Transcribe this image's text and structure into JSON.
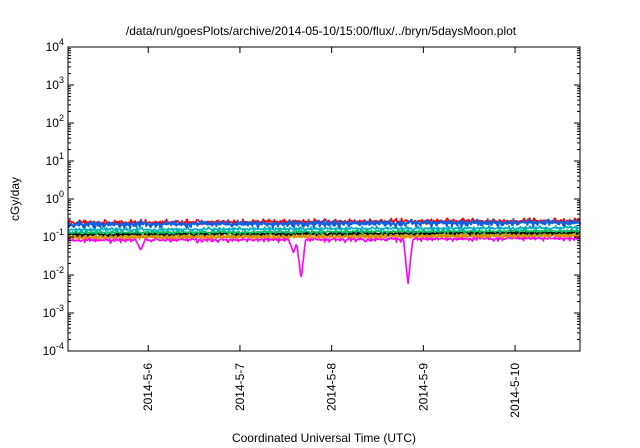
{
  "chart_data": {
    "type": "line",
    "title": "/data/run/goesPlots/archive/2014-05-10/15:00/flux/../bryn/5daysMoon.plot",
    "xlabel": "Coordinated Universal Time (UTC)",
    "ylabel": "cGy/day",
    "yscale": "log",
    "ylim": [
      0.0001,
      10000
    ],
    "y_ticks": [
      {
        "exp": "-4",
        "value": 0.0001
      },
      {
        "exp": "-3",
        "value": 0.001
      },
      {
        "exp": "-2",
        "value": 0.01
      },
      {
        "exp": "-1",
        "value": 0.1
      },
      {
        "exp": "0",
        "value": 1
      },
      {
        "exp": "1",
        "value": 10
      },
      {
        "exp": "2",
        "value": 100
      },
      {
        "exp": "3",
        "value": 1000
      },
      {
        "exp": "4",
        "value": 10000
      }
    ],
    "y_tick_base": "10",
    "xlim": [
      "2014-05-05T03:00",
      "2014-05-10T17:00"
    ],
    "x_ticks": [
      {
        "label": "2014-5-6",
        "time": "2014-05-06T00:00"
      },
      {
        "label": "2014-5-7",
        "time": "2014-05-07T00:00"
      },
      {
        "label": "2014-5-8",
        "time": "2014-05-08T00:00"
      },
      {
        "label": "2014-5-9",
        "time": "2014-05-09T00:00"
      },
      {
        "label": "2014-5-10",
        "time": "2014-05-10T00:00"
      }
    ],
    "grid": false,
    "legend": "none",
    "series": [
      {
        "color": "#ff00ff",
        "base": 0.082,
        "noise": 0.18,
        "dips": [
          {
            "time": "2014-05-05T22:00",
            "min": 0.045
          },
          {
            "time": "2014-05-07T14:00",
            "min": 0.038
          },
          {
            "time": "2014-05-07T16:00",
            "min": 0.008
          },
          {
            "time": "2014-05-08T20:00",
            "min": 0.0058
          }
        ]
      },
      {
        "color": "#ff7f00",
        "base": 0.095,
        "noise": 0.12,
        "dips": []
      },
      {
        "color": "#b8a000",
        "base": 0.105,
        "noise": 0.12,
        "dips": []
      },
      {
        "color": "#000000",
        "base": 0.117,
        "noise": 0.12,
        "dips": []
      },
      {
        "color": "#00c060",
        "base": 0.13,
        "noise": 0.14,
        "dips": []
      },
      {
        "color": "#00b0c0",
        "base": 0.155,
        "noise": 0.16,
        "dips": []
      },
      {
        "color": "#ff0000",
        "base": 0.24,
        "noise": 0.2,
        "dips": []
      },
      {
        "color": "#1060e0",
        "base": 0.215,
        "noise": 0.22,
        "dips": []
      }
    ]
  }
}
